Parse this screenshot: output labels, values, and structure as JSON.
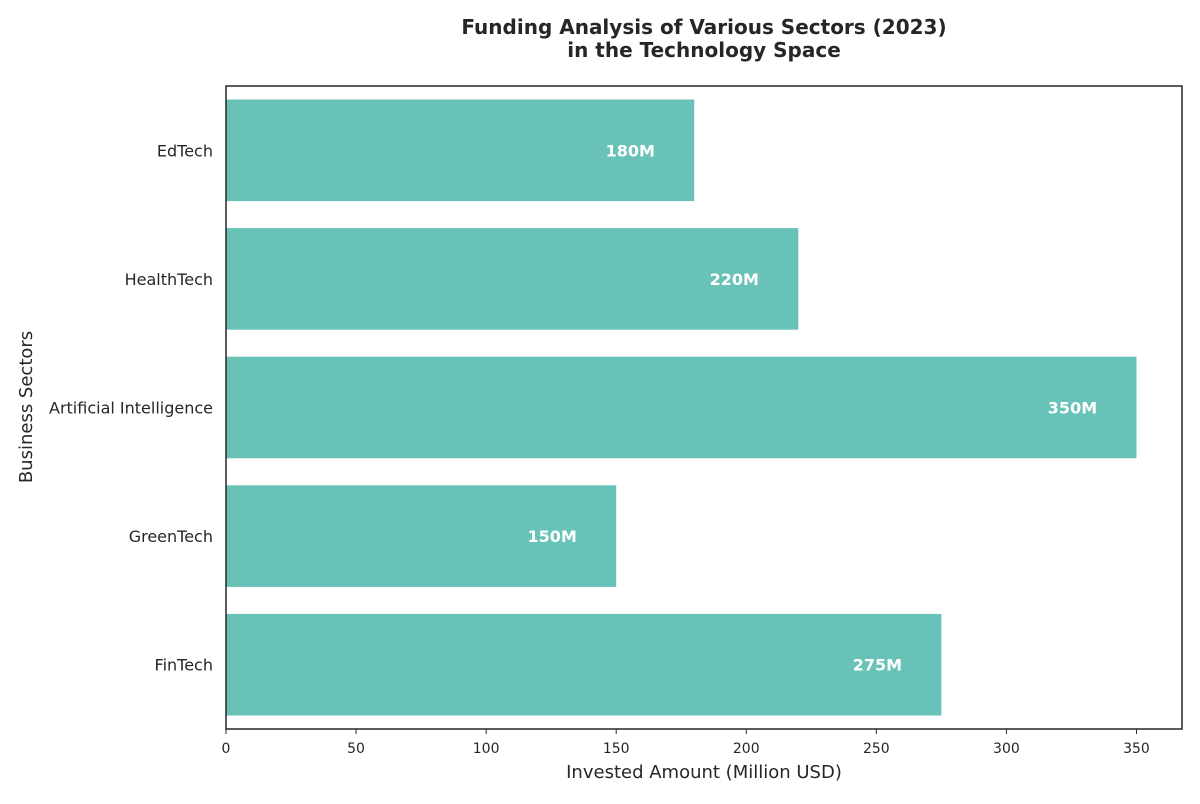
{
  "chart_data": {
    "type": "bar",
    "orientation": "horizontal",
    "title": [
      "Funding Analysis of Various Sectors (2023)",
      "in the Technology Space"
    ],
    "xlabel": "Invested Amount (Million USD)",
    "ylabel": "Business Sectors",
    "categories": [
      "EdTech",
      "HealthTech",
      "Artificial Intelligence",
      "GreenTech",
      "FinTech"
    ],
    "values": [
      180,
      220,
      350,
      150,
      275
    ],
    "data_labels": [
      "180M",
      "220M",
      "350M",
      "150M",
      "275M"
    ],
    "xlim": [
      0,
      367.5
    ],
    "xticks": [
      0,
      50,
      100,
      150,
      200,
      250,
      300,
      350
    ],
    "bar_color": "#68c2b8",
    "label_color": "#ffffff",
    "grid": false,
    "legend": "none"
  }
}
